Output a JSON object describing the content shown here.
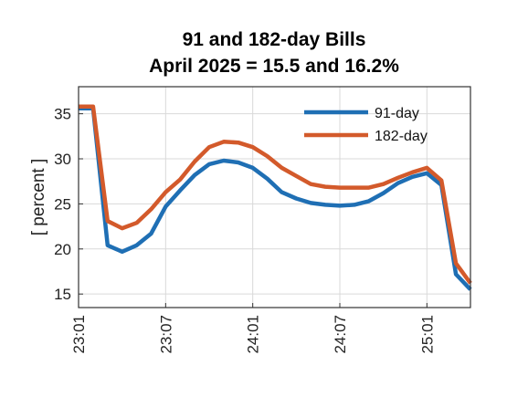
{
  "chart_data": {
    "type": "line",
    "title": "91 and 182-day Bills",
    "subtitle": "April 2025 = 15.5 and 16.2%",
    "ylabel": "[ percent ]",
    "xlabel": "",
    "ylim": [
      13.5,
      38
    ],
    "yticks": [
      15,
      20,
      25,
      30,
      35
    ],
    "xlim": [
      0,
      27
    ],
    "xticks": [
      {
        "pos": 0,
        "label": "23:01"
      },
      {
        "pos": 6,
        "label": "23:07"
      },
      {
        "pos": 12,
        "label": "24:01"
      },
      {
        "pos": 18,
        "label": "24:07"
      },
      {
        "pos": 24,
        "label": "25:01"
      }
    ],
    "grid": true,
    "legend_position": "top-right",
    "x": [
      0,
      1,
      2,
      3,
      4,
      5,
      6,
      7,
      8,
      9,
      10,
      11,
      12,
      13,
      14,
      15,
      16,
      17,
      18,
      19,
      20,
      21,
      22,
      23,
      24,
      25,
      26,
      27
    ],
    "series": [
      {
        "name": "91-day",
        "color": "#1f6fb4",
        "values": [
          35.6,
          35.6,
          20.4,
          19.7,
          20.4,
          21.7,
          24.7,
          26.5,
          28.2,
          29.4,
          29.8,
          29.6,
          29.0,
          27.8,
          26.3,
          25.6,
          25.1,
          24.9,
          24.8,
          24.9,
          25.3,
          26.2,
          27.3,
          28.0,
          28.4,
          27.1,
          17.2,
          15.5
        ]
      },
      {
        "name": "182-day",
        "color": "#d35a2b",
        "values": [
          35.8,
          35.8,
          23.1,
          22.3,
          22.9,
          24.4,
          26.3,
          27.7,
          29.7,
          31.3,
          31.9,
          31.8,
          31.3,
          30.3,
          29.0,
          28.1,
          27.2,
          26.9,
          26.8,
          26.8,
          26.8,
          27.2,
          27.9,
          28.5,
          29.0,
          27.6,
          18.4,
          16.2
        ]
      }
    ]
  }
}
